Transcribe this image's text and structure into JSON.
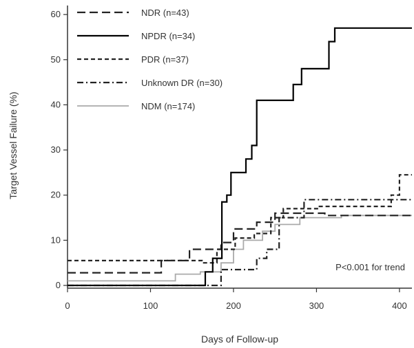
{
  "chart_data": {
    "type": "line",
    "step": true,
    "title": "",
    "xlabel": "Days of Follow-up",
    "ylabel": "Target Vessel Failure (%)",
    "xlim": [
      0,
      415
    ],
    "ylim": [
      0,
      62
    ],
    "xticks": [
      0,
      100,
      200,
      300,
      400
    ],
    "yticks": [
      0,
      10,
      20,
      30,
      40,
      50,
      60
    ],
    "annotation": "P<0.001 for trend",
    "legend_position": "top-left",
    "series": [
      {
        "name": "NDR (n=43)",
        "dash": "dashed-long",
        "color": "#222222",
        "points": [
          [
            0,
            2.8
          ],
          [
            113,
            2.8
          ],
          [
            113,
            5.5
          ],
          [
            147,
            5.5
          ],
          [
            147,
            8
          ],
          [
            185,
            8
          ],
          [
            185,
            9.5
          ],
          [
            200,
            9.5
          ],
          [
            200,
            12.5
          ],
          [
            228,
            12.5
          ],
          [
            228,
            14
          ],
          [
            250,
            14
          ],
          [
            250,
            16
          ],
          [
            310,
            16
          ],
          [
            310,
            15.5
          ],
          [
            415,
            15.5
          ]
        ]
      },
      {
        "name": "NPDR (n=34)",
        "dash": "solid",
        "color": "#000000",
        "points": [
          [
            0,
            0
          ],
          [
            166,
            0
          ],
          [
            166,
            3
          ],
          [
            175,
            3
          ],
          [
            175,
            6
          ],
          [
            186,
            6
          ],
          [
            186,
            18.5
          ],
          [
            192,
            18.5
          ],
          [
            192,
            20
          ],
          [
            197,
            20
          ],
          [
            197,
            25
          ],
          [
            215,
            25
          ],
          [
            215,
            28
          ],
          [
            222,
            28
          ],
          [
            222,
            31
          ],
          [
            228,
            31
          ],
          [
            228,
            41
          ],
          [
            272,
            41
          ],
          [
            272,
            44.5
          ],
          [
            282,
            44.5
          ],
          [
            282,
            48
          ],
          [
            315,
            48
          ],
          [
            315,
            54
          ],
          [
            322,
            54
          ],
          [
            322,
            57
          ],
          [
            415,
            57
          ]
        ]
      },
      {
        "name": "PDR (n=37)",
        "dash": "dashed-short",
        "color": "#222222",
        "points": [
          [
            0,
            5.5
          ],
          [
            135,
            5.5
          ],
          [
            135,
            5.5
          ],
          [
            162,
            5.5
          ],
          [
            162,
            5
          ],
          [
            180,
            5
          ],
          [
            180,
            8
          ],
          [
            202,
            8
          ],
          [
            202,
            10.5
          ],
          [
            225,
            10.5
          ],
          [
            225,
            11.5
          ],
          [
            245,
            11.5
          ],
          [
            245,
            15
          ],
          [
            260,
            15
          ],
          [
            260,
            17
          ],
          [
            302,
            17
          ],
          [
            302,
            17.5
          ],
          [
            390,
            17.5
          ],
          [
            390,
            20
          ],
          [
            400,
            20
          ],
          [
            400,
            24.5
          ],
          [
            415,
            24.5
          ]
        ]
      },
      {
        "name": "Unknown DR (n=30)",
        "dash": "dash-dot",
        "color": "#222222",
        "points": [
          [
            0,
            0
          ],
          [
            185,
            0
          ],
          [
            185,
            3.5
          ],
          [
            228,
            3.5
          ],
          [
            228,
            6
          ],
          [
            240,
            6
          ],
          [
            240,
            8
          ],
          [
            255,
            8
          ],
          [
            255,
            15
          ],
          [
            285,
            15
          ],
          [
            285,
            19
          ],
          [
            415,
            19
          ]
        ]
      },
      {
        "name": "NDM (n=174)",
        "dash": "solid",
        "color": "#aaaaaa",
        "points": [
          [
            0,
            1
          ],
          [
            130,
            1
          ],
          [
            130,
            2.5
          ],
          [
            160,
            2.5
          ],
          [
            160,
            3
          ],
          [
            185,
            3
          ],
          [
            185,
            5
          ],
          [
            200,
            5
          ],
          [
            200,
            8
          ],
          [
            212,
            8
          ],
          [
            212,
            10
          ],
          [
            235,
            10
          ],
          [
            235,
            12
          ],
          [
            250,
            12
          ],
          [
            250,
            13.5
          ],
          [
            280,
            13.5
          ],
          [
            280,
            15
          ],
          [
            330,
            15
          ],
          [
            330,
            15.5
          ],
          [
            415,
            15.5
          ]
        ]
      }
    ]
  }
}
